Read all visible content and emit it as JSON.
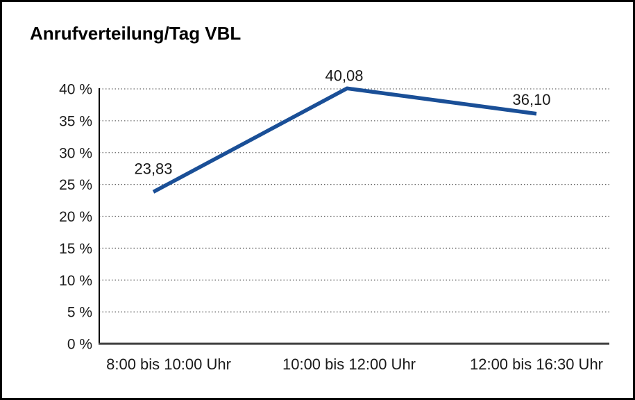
{
  "page": {
    "background": "#ffffff",
    "frame_border_color": "#000000"
  },
  "chart_data": {
    "type": "line",
    "title": "Anrufverteilung/Tag VBL",
    "categories": [
      "8:00 bis 10:00 Uhr",
      "10:00 bis 12:00 Uhr",
      "12:00 bis 16:30 Uhr"
    ],
    "series": [
      {
        "name": "Anrufverteilung/Tag VBL",
        "values": [
          23.83,
          40.08,
          36.1
        ],
        "point_labels": [
          "23,83",
          "40,08",
          "36,10"
        ],
        "color": "#1A4F97"
      }
    ],
    "xlabel": "",
    "ylabel": "",
    "ylim": [
      0,
      40
    ],
    "ytick_step": 5,
    "ytick_labels": [
      "0 %",
      "5 %",
      "10 %",
      "15 %",
      "20 %",
      "25 %",
      "30 %",
      "35 %",
      "40 %"
    ],
    "grid": "horizontal-dotted",
    "gridline_color": "#666666",
    "axis_color": "#000000",
    "x_axis_color": "#3d3d3d",
    "legend_position": "none"
  }
}
